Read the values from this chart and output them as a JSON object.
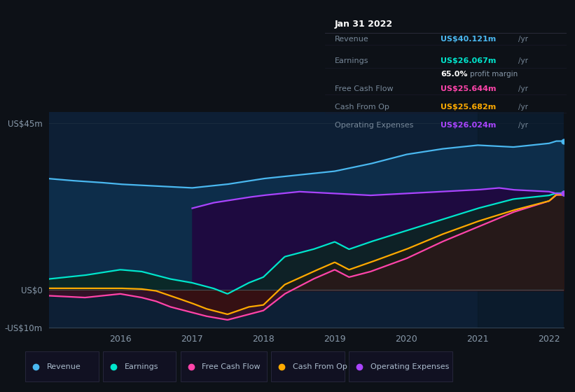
{
  "background_color": "#0d1117",
  "chart_bg": "#0d1f35",
  "dark_bg": "#0a0f1a",
  "tooltip": {
    "date": "Jan 31 2022",
    "revenue_label": "Revenue",
    "revenue_value": "US$40.121m",
    "revenue_color": "#4ab8f0",
    "earnings_label": "Earnings",
    "earnings_value": "US$26.067m",
    "earnings_color": "#00e5cc",
    "margin_pct": "65.0%",
    "margin_text": "profit margin",
    "fcf_label": "Free Cash Flow",
    "fcf_value": "US$25.644m",
    "fcf_color": "#ff44aa",
    "cashop_label": "Cash From Op",
    "cashop_value": "US$25.682m",
    "cashop_color": "#ffaa00",
    "opex_label": "Operating Expenses",
    "opex_value": "US$26.024m",
    "opex_color": "#aa44ff"
  },
  "revenue_data_x": [
    2015.0,
    2015.3,
    2015.7,
    2016.0,
    2016.5,
    2017.0,
    2017.5,
    2018.0,
    2018.5,
    2019.0,
    2019.5,
    2020.0,
    2020.5,
    2021.0,
    2021.5,
    2022.0,
    2022.1
  ],
  "revenue_data_y": [
    30,
    29.5,
    29,
    28.5,
    28,
    27.5,
    28.5,
    30,
    31,
    32,
    34,
    36.5,
    38,
    39,
    38.5,
    39.5,
    40.1
  ],
  "earnings_data_x": [
    2015.0,
    2015.5,
    2016.0,
    2016.3,
    2016.5,
    2016.7,
    2017.0,
    2017.3,
    2017.5,
    2017.8,
    2018.0,
    2018.3,
    2018.7,
    2019.0,
    2019.2,
    2019.5,
    2020.0,
    2020.5,
    2021.0,
    2021.5,
    2022.0,
    2022.1
  ],
  "earnings_data_y": [
    3,
    4,
    5.5,
    5,
    4,
    3,
    2,
    0.5,
    -1,
    2,
    3.5,
    9,
    11,
    13,
    11,
    13,
    16,
    19,
    22,
    24.5,
    25.5,
    26.1
  ],
  "fcf_data_x": [
    2015.0,
    2015.5,
    2016.0,
    2016.3,
    2016.5,
    2016.7,
    2017.0,
    2017.2,
    2017.5,
    2017.8,
    2018.0,
    2018.3,
    2018.7,
    2019.0,
    2019.2,
    2019.5,
    2020.0,
    2020.5,
    2021.0,
    2021.5,
    2022.0,
    2022.1
  ],
  "fcf_data_y": [
    -1.5,
    -2,
    -1,
    -2,
    -3,
    -4.5,
    -6,
    -7,
    -8,
    -6.5,
    -5.5,
    -1,
    3,
    5.5,
    3.5,
    5,
    8.5,
    13,
    17,
    21,
    24,
    25.6
  ],
  "cashop_data_x": [
    2015.0,
    2015.5,
    2016.0,
    2016.3,
    2016.5,
    2016.7,
    2017.0,
    2017.2,
    2017.5,
    2017.8,
    2018.0,
    2018.3,
    2018.7,
    2019.0,
    2019.2,
    2019.5,
    2020.0,
    2020.5,
    2021.0,
    2021.5,
    2022.0,
    2022.1
  ],
  "cashop_data_y": [
    0.5,
    0.5,
    0.5,
    0.3,
    -0.2,
    -1.5,
    -3.5,
    -5,
    -6.5,
    -4.5,
    -4,
    1.5,
    5,
    7.5,
    5.5,
    7.5,
    11,
    15,
    18.5,
    21.5,
    24,
    25.7
  ],
  "opex_data_x": [
    2017.0,
    2017.3,
    2017.8,
    2018.0,
    2018.5,
    2019.0,
    2019.5,
    2020.0,
    2020.5,
    2021.0,
    2021.3,
    2021.5,
    2022.0,
    2022.1
  ],
  "opex_data_y": [
    22,
    23.5,
    25,
    25.5,
    26.5,
    26.0,
    25.5,
    26,
    26.5,
    27,
    27.5,
    27,
    26.5,
    26.0
  ],
  "revenue_color": "#4ab8f0",
  "earnings_color": "#00e5cc",
  "fcf_color": "#ff44aa",
  "cashop_color": "#ffaa00",
  "opex_color": "#aa44ff",
  "revenue_fill": "#0d3050",
  "opex_fill": "#220a50",
  "earnings_fill": "#0a2a25",
  "xlim_left": 2015.0,
  "xlim_right": 2022.2,
  "ylim_bottom": -10,
  "ylim_top": 48,
  "legend_items": [
    {
      "label": "Revenue",
      "color": "#4ab8f0"
    },
    {
      "label": "Earnings",
      "color": "#00e5cc"
    },
    {
      "label": "Free Cash Flow",
      "color": "#ff44aa"
    },
    {
      "label": "Cash From Op",
      "color": "#ffaa00"
    },
    {
      "label": "Operating Expenses",
      "color": "#aa44ff"
    }
  ]
}
